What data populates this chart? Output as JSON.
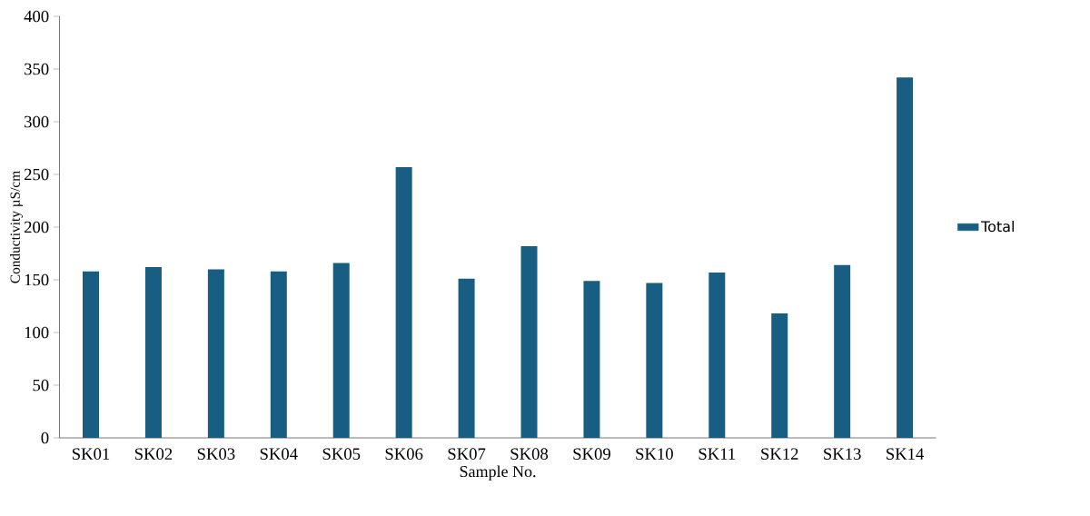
{
  "chart_data": {
    "type": "bar",
    "xlabel": "Sample No.",
    "ylabel": "Conductivity µS/cm",
    "categories": [
      "SK01",
      "SK02",
      "SK03",
      "SK04",
      "SK05",
      "SK06",
      "SK07",
      "SK08",
      "SK09",
      "SK10",
      "SK11",
      "SK12",
      "SK13",
      "SK14"
    ],
    "series": [
      {
        "name": "Total",
        "color": "#175e82",
        "values": [
          158,
          162,
          160,
          158,
          166,
          257,
          151,
          182,
          149,
          147,
          157,
          118,
          164,
          342
        ]
      }
    ],
    "ylim": [
      0,
      400
    ],
    "yticks": [
      0,
      50,
      100,
      150,
      200,
      250,
      300,
      350,
      400
    ],
    "legend": "right"
  }
}
